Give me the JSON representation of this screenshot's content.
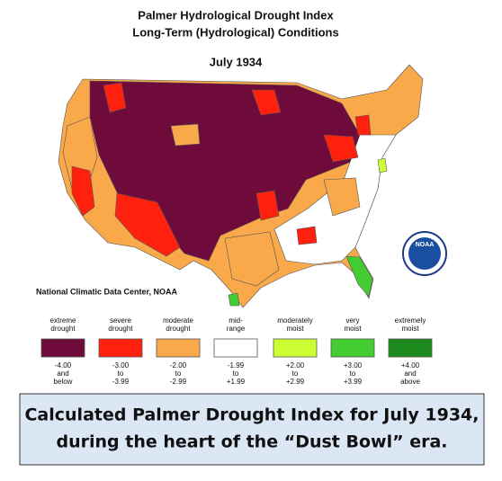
{
  "title": "Palmer Hydrological Drought Index",
  "subtitle": "Long-Term (Hydrological) Conditions",
  "date": "July 1934",
  "source": "National Climatic Data Center, NOAA",
  "logo": "NOAA",
  "legend": [
    {
      "label": [
        "extreme",
        "drought"
      ],
      "color": "#6e0b3b",
      "range": [
        "-4.00",
        "and",
        "below"
      ]
    },
    {
      "label": [
        "severe",
        "drought"
      ],
      "color": "#ff200d",
      "range": [
        "-3.00",
        "to",
        "-3.99"
      ]
    },
    {
      "label": [
        "moderate",
        "drought"
      ],
      "color": "#f9a84a",
      "range": [
        "-2.00",
        "to",
        "-2.99"
      ]
    },
    {
      "label": [
        "mid-",
        "range"
      ],
      "color": "#ffffff",
      "range": [
        "-1.99",
        "to",
        "+1.99"
      ]
    },
    {
      "label": [
        "moderately",
        "moist"
      ],
      "color": "#ccff33",
      "range": [
        "+2.00",
        "to",
        "+2.99"
      ]
    },
    {
      "label": [
        "very",
        "moist"
      ],
      "color": "#44cc33",
      "range": [
        "+3.00",
        "to",
        "+3.99"
      ]
    },
    {
      "label": [
        "extremely",
        "moist"
      ],
      "color": "#1e8a1e",
      "range": [
        "+4.00",
        "and",
        "above"
      ]
    }
  ],
  "caption": [
    "Calculated Palmer Drought Index for July 1934,",
    "during the heart of the “Dust Bowl” era."
  ]
}
